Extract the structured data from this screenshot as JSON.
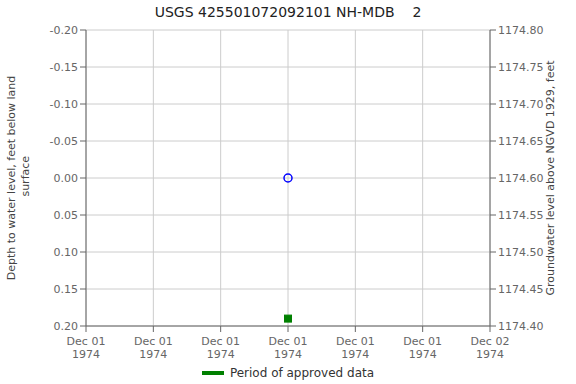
{
  "chart_data": {
    "type": "scatter",
    "title": "USGS 425501072092101 NH-MDB    2",
    "y_label": "Depth to water level, feet below land\n surface",
    "y2_label": "Groundwater level above NGVD 1929, feet",
    "categories": [
      "Dec 01\n1974",
      "Dec 01\n1974",
      "Dec 01\n1974",
      "Dec 01\n1974",
      "Dec 01\n1974",
      "Dec 01\n1974",
      "Dec 02\n1974"
    ],
    "series": [
      {
        "color": "blue",
        "marker": "open_circle",
        "values": [
          null,
          null,
          null,
          0.0,
          null,
          null,
          null
        ]
      },
      {
        "name": "Period of approved data",
        "color": "#008000",
        "marker": "square",
        "values": [
          null,
          null,
          null,
          0.19,
          null,
          null,
          null
        ]
      }
    ],
    "ylim": [
      0.2,
      -0.2
    ],
    "yticks": [
      {
        "value": -0.2,
        "label": "-0.20"
      },
      -0.15,
      {
        "value": -0.1,
        "label": "-0.10"
      },
      -0.05,
      {
        "value": 0,
        "label": "0.00"
      },
      0.05,
      {
        "value": 0.1,
        "label": "0.10"
      },
      0.15,
      {
        "value": 0.2,
        "label": "0.20"
      }
    ],
    "y2lim": [
      1174.4,
      1174.8
    ],
    "y2ticks": [
      {
        "value": 1174.4,
        "label": "1174.40"
      },
      1174.45,
      {
        "value": 1174.5,
        "label": "1174.50"
      },
      1174.55,
      {
        "value": 1174.6,
        "label": "1174.60"
      },
      1174.65,
      {
        "value": 1174.7,
        "label": "1174.70"
      },
      1174.75,
      {
        "value": 1174.8,
        "label": "1174.80"
      }
    ],
    "grid": true
  }
}
